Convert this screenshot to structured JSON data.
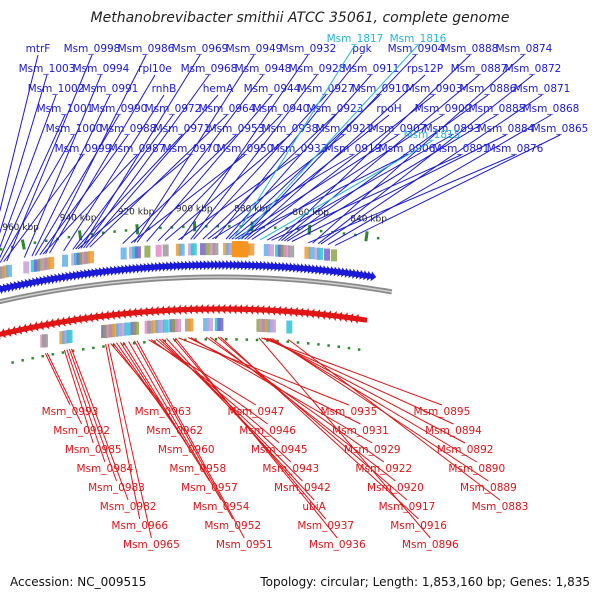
{
  "title": "Methanobrevibacter smithii ATCC 35061, complete genome",
  "accession_label": "Accession: NC_009515",
  "summary_label": "Topology: circular; Length: 1,853,160 bp; Genes: 1,835",
  "colors": {
    "forward": "#1a1ad6",
    "reverse": "#e01515",
    "rna": "#22b8d8",
    "backbone": "#8a8a8a",
    "tick": "#2a8a2a"
  },
  "map_data": {
    "type": "circular-genome-map",
    "visible_range_kbp": [
      836,
      975
    ],
    "ticks_kbp": [
      840,
      860,
      880,
      900,
      920,
      940,
      960
    ],
    "tick_labels": [
      "840 kbp",
      "860 kbp",
      "880 kbp",
      "900 kbp",
      "920 kbp",
      "940 kbp",
      "960 kbp"
    ],
    "forward_genes": [
      {
        "name": "mtrF",
        "pos_kbp": 974.2
      },
      {
        "name": "Msm_1003",
        "pos_kbp": 972.8
      },
      {
        "name": "Msm_1002",
        "pos_kbp": 971.5
      },
      {
        "name": "Msm_1001",
        "pos_kbp": 970.3
      },
      {
        "name": "Msm_1000",
        "pos_kbp": 969.2
      },
      {
        "name": "Msm_0999",
        "pos_kbp": 968.0
      },
      {
        "name": "Msm_0998",
        "pos_kbp": 966.8
      },
      {
        "name": "Msm_0994",
        "pos_kbp": 960.5
      },
      {
        "name": "Msm_0991",
        "pos_kbp": 957.8
      },
      {
        "name": "Msm_0990",
        "pos_kbp": 956.6
      },
      {
        "name": "Msm_0988",
        "pos_kbp": 955.0
      },
      {
        "name": "Msm_0987",
        "pos_kbp": 953.9
      },
      {
        "name": "Msm_0986",
        "pos_kbp": 952.9
      },
      {
        "name": "rpl10e",
        "pos_kbp": 951.5
      },
      {
        "name": "rnhB",
        "pos_kbp": 946.5
      },
      {
        "name": "Msm_0972",
        "pos_kbp": 943.2
      },
      {
        "name": "Msm_0971",
        "pos_kbp": 942.2
      },
      {
        "name": "Msm_0970",
        "pos_kbp": 941.3
      },
      {
        "name": "Msm_0969",
        "pos_kbp": 940.3
      },
      {
        "name": "Msm_0968",
        "pos_kbp": 939.4
      },
      {
        "name": "hemA",
        "pos_kbp": 938.5
      },
      {
        "name": "Msm_0964",
        "pos_kbp": 937.2
      },
      {
        "name": "Msm_0953",
        "pos_kbp": 925.5
      },
      {
        "name": "Msm_0950",
        "pos_kbp": 922.5
      },
      {
        "name": "Msm_0949",
        "pos_kbp": 921.4
      },
      {
        "name": "Msm_0948",
        "pos_kbp": 920.4
      },
      {
        "name": "Msm_0944",
        "pos_kbp": 917.0
      },
      {
        "name": "Msm_0940",
        "pos_kbp": 913.0
      },
      {
        "name": "Msm_0938",
        "pos_kbp": 910.5
      },
      {
        "name": "Msm_0933",
        "pos_kbp": 905.8
      },
      {
        "name": "Msm_0932",
        "pos_kbp": 904.8
      },
      {
        "name": "Msm_0928",
        "pos_kbp": 901.5
      },
      {
        "name": "Msm_0927",
        "pos_kbp": 900.5
      },
      {
        "name": "Msm_0923",
        "pos_kbp": 897.2
      },
      {
        "name": "Msm_0921",
        "pos_kbp": 895.5
      },
      {
        "name": "Msm_0919",
        "pos_kbp": 893.9
      },
      {
        "name": "pgk",
        "pos_kbp": 892.8
      },
      {
        "name": "Msm_0911",
        "pos_kbp": 889.0
      },
      {
        "name": "Msm_0910",
        "pos_kbp": 888.0
      },
      {
        "name": "rpoH",
        "pos_kbp": 887.0
      },
      {
        "name": "Msm_0907",
        "pos_kbp": 885.8
      },
      {
        "name": "Msm_0906",
        "pos_kbp": 884.8
      },
      {
        "name": "Msm_0904",
        "pos_kbp": 883.6
      },
      {
        "name": "rps12P",
        "pos_kbp": 882.5
      },
      {
        "name": "Msm_0903",
        "pos_kbp": 881.5
      },
      {
        "name": "Msm_0900",
        "pos_kbp": 880.0
      },
      {
        "name": "Msm_0893",
        "pos_kbp": 874.5
      },
      {
        "name": "Msm_0891",
        "pos_kbp": 873.0
      },
      {
        "name": "Msm_0888",
        "pos_kbp": 870.5
      },
      {
        "name": "Msm_0887",
        "pos_kbp": 869.5
      },
      {
        "name": "Msm_0886",
        "pos_kbp": 868.5
      },
      {
        "name": "Msm_0885",
        "pos_kbp": 867.5
      },
      {
        "name": "Msm_0884",
        "pos_kbp": 865.8
      },
      {
        "name": "Msm_0876",
        "pos_kbp": 860.0
      },
      {
        "name": "Msm_0874",
        "pos_kbp": 858.5
      },
      {
        "name": "Msm_0872",
        "pos_kbp": 856.5
      },
      {
        "name": "Msm_0871",
        "pos_kbp": 855.5
      },
      {
        "name": "Msm_0868",
        "pos_kbp": 853.0
      },
      {
        "name": "Msm_0865",
        "pos_kbp": 850.5
      }
    ],
    "rna_genes": [
      {
        "name": "Msm_1817",
        "pos_kbp": 886.5
      },
      {
        "name": "Msm_1816",
        "pos_kbp": 884.2
      },
      {
        "name": "Msm_1815",
        "pos_kbp": 877.0
      }
    ],
    "reverse_genes": [
      {
        "name": "Msm_0993",
        "pos_kbp": 959.5
      },
      {
        "name": "Msm_0992",
        "pos_kbp": 958.8
      },
      {
        "name": "Msm_0985",
        "pos_kbp": 952.0
      },
      {
        "name": "Msm_0984",
        "pos_kbp": 951.0
      },
      {
        "name": "Msm_0983",
        "pos_kbp": 950.0
      },
      {
        "name": "Msm_0982",
        "pos_kbp": 949.2
      },
      {
        "name": "Msm_0966",
        "pos_kbp": 935.8
      },
      {
        "name": "Msm_0965",
        "pos_kbp": 934.8
      },
      {
        "name": "Msm_0963",
        "pos_kbp": 933.8
      },
      {
        "name": "Msm_0962",
        "pos_kbp": 932.8
      },
      {
        "name": "Msm_0960",
        "pos_kbp": 931.5
      },
      {
        "name": "Msm_0958",
        "pos_kbp": 930.0
      },
      {
        "name": "Msm_0957",
        "pos_kbp": 928.8
      },
      {
        "name": "Msm_0954",
        "pos_kbp": 926.8
      },
      {
        "name": "Msm_0952",
        "pos_kbp": 924.5
      },
      {
        "name": "Msm_0951",
        "pos_kbp": 923.5
      },
      {
        "name": "Msm_0947",
        "pos_kbp": 919.0
      },
      {
        "name": "Msm_0946",
        "pos_kbp": 918.0
      },
      {
        "name": "Msm_0945",
        "pos_kbp": 916.0
      },
      {
        "name": "Msm_0943",
        "pos_kbp": 914.8
      },
      {
        "name": "Msm_0942",
        "pos_kbp": 913.8
      },
      {
        "name": "ubiA",
        "pos_kbp": 912.0
      },
      {
        "name": "Msm_0937",
        "pos_kbp": 909.5
      },
      {
        "name": "Msm_0936",
        "pos_kbp": 908.5
      },
      {
        "name": "Msm_0935",
        "pos_kbp": 907.3
      },
      {
        "name": "Msm_0931",
        "pos_kbp": 903.5
      },
      {
        "name": "Msm_0929",
        "pos_kbp": 902.5
      },
      {
        "name": "Msm_0922",
        "pos_kbp": 896.5
      },
      {
        "name": "Msm_0920",
        "pos_kbp": 895.0
      },
      {
        "name": "Msm_0917",
        "pos_kbp": 892.0
      },
      {
        "name": "Msm_0916",
        "pos_kbp": 891.0
      },
      {
        "name": "Msm_0896",
        "pos_kbp": 876.0
      },
      {
        "name": "Msm_0895",
        "pos_kbp": 875.0
      },
      {
        "name": "Msm_0894",
        "pos_kbp": 874.0
      },
      {
        "name": "Msm_0892",
        "pos_kbp": 872.8
      },
      {
        "name": "Msm_0890",
        "pos_kbp": 871.8
      },
      {
        "name": "Msm_0889",
        "pos_kbp": 870.8
      },
      {
        "name": "Msm_0883",
        "pos_kbp": 864.5
      }
    ]
  }
}
